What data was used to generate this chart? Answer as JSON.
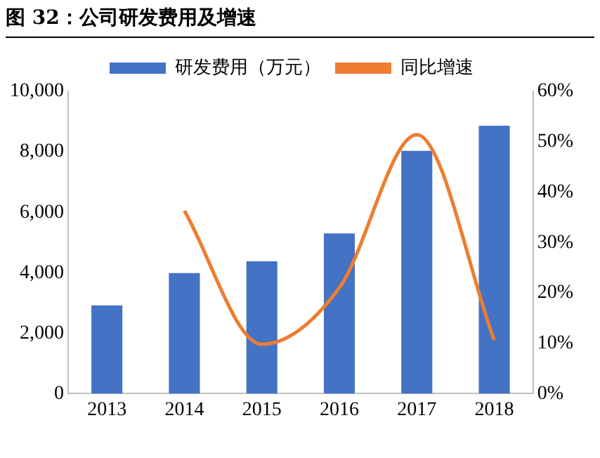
{
  "chart_data": {
    "type": "bar",
    "title": "图 32：公司研发费用及增速",
    "categories": [
      "2013",
      "2014",
      "2015",
      "2016",
      "2017",
      "2018"
    ],
    "series": [
      {
        "name": "研发费用（万元）",
        "color": "#4472c4",
        "values": [
          2920,
          3990,
          4380,
          5300,
          8030,
          8860
        ]
      },
      {
        "name": "同比增速",
        "type": "line",
        "axis": "y2",
        "color": "#ed7d31",
        "values": [
          null,
          36.3,
          9.8,
          21,
          51.4,
          10.6
        ]
      }
    ],
    "ylim": [
      0,
      10000
    ],
    "yticks": [
      {
        "value": 0,
        "label": "0"
      },
      {
        "value": 2000,
        "label": "2,000"
      },
      {
        "value": 4000,
        "label": "4,000"
      },
      {
        "value": 6000,
        "label": "6,000"
      },
      {
        "value": 8000,
        "label": "8,000"
      },
      {
        "value": 10000,
        "label": "10,000"
      }
    ],
    "y2lim": [
      0,
      60
    ],
    "y2ticks": [
      {
        "value": 0,
        "label": "0%"
      },
      {
        "value": 10,
        "label": "10%"
      },
      {
        "value": 20,
        "label": "20%"
      },
      {
        "value": 30,
        "label": "30%"
      },
      {
        "value": 40,
        "label": "40%"
      },
      {
        "value": 50,
        "label": "50%"
      },
      {
        "value": 60,
        "label": "60%"
      }
    ],
    "legend": "top",
    "grid": false,
    "marker": "none"
  }
}
